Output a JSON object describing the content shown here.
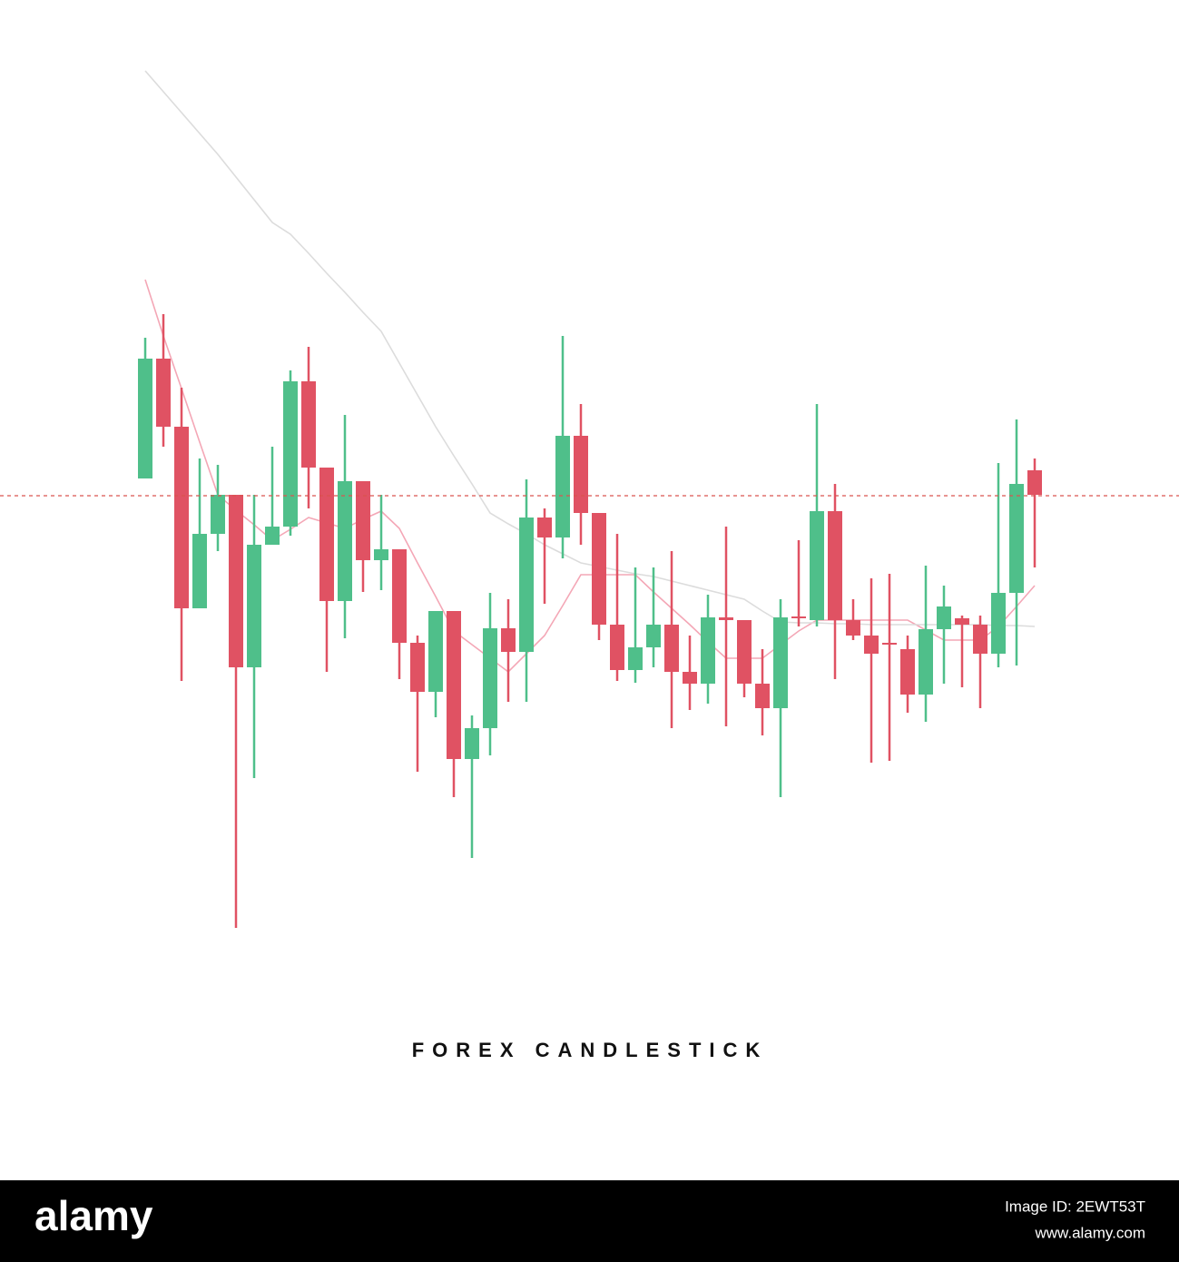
{
  "chart_data": {
    "type": "candlestick",
    "title": "FOREX CANDLESTICK",
    "categories": [
      null,
      null,
      null,
      null,
      null,
      null,
      null,
      null,
      null,
      null,
      null,
      null,
      null,
      null,
      null,
      null,
      null,
      null,
      null,
      null,
      null,
      null,
      null,
      null,
      null,
      null,
      null,
      null,
      null,
      null,
      null,
      null,
      null,
      null,
      null,
      null,
      null,
      null,
      null,
      null,
      null,
      null,
      null,
      null,
      null,
      null,
      null,
      null,
      null,
      null
    ],
    "open": [
      573,
      705,
      630,
      430,
      512,
      555,
      365,
      500,
      520,
      680,
      585,
      438,
      570,
      483,
      495,
      392,
      338,
      427,
      264,
      298,
      408,
      382,
      530,
      508,
      620,
      535,
      412,
      362,
      387,
      412,
      360,
      347,
      420,
      417,
      347,
      320,
      421,
      417,
      537,
      417,
      400,
      392,
      385,
      335,
      407,
      419,
      412,
      380,
      447,
      582
    ],
    "high": [
      728,
      754,
      673,
      595,
      588,
      555,
      555,
      608,
      692,
      718,
      585,
      643,
      570,
      555,
      495,
      400,
      427,
      427,
      312,
      447,
      440,
      572,
      540,
      730,
      655,
      535,
      512,
      475,
      475,
      493,
      400,
      445,
      520,
      417,
      385,
      440,
      505,
      655,
      567,
      440,
      463,
      468,
      400,
      477,
      455,
      422,
      422,
      590,
      638,
      595
    ],
    "low": [
      573,
      608,
      350,
      430,
      493,
      78,
      243,
      500,
      510,
      540,
      360,
      397,
      448,
      450,
      352,
      250,
      310,
      222,
      155,
      268,
      327,
      327,
      435,
      485,
      500,
      395,
      350,
      348,
      365,
      298,
      318,
      325,
      300,
      332,
      290,
      222,
      410,
      410,
      352,
      395,
      260,
      262,
      315,
      305,
      347,
      343,
      320,
      365,
      367,
      475
    ],
    "close": [
      705,
      630,
      430,
      512,
      555,
      365,
      500,
      520,
      680,
      585,
      438,
      570,
      483,
      495,
      392,
      338,
      427,
      264,
      298,
      408,
      382,
      530,
      508,
      620,
      535,
      412,
      362,
      387,
      412,
      360,
      347,
      420,
      417,
      347,
      320,
      420,
      419,
      537,
      417,
      400,
      380,
      390,
      335,
      407,
      432,
      412,
      380,
      447,
      567,
      555
    ],
    "up_color": "#4fbf8a",
    "down_color": "#e05263",
    "lines": [
      {
        "color": "#f4a7b6",
        "values": [
          792,
          730,
          672,
          613,
          555,
          538,
          522,
          505,
          517,
          530,
          524,
          518,
          528,
          537,
          518,
          480,
          443,
          405,
          390,
          375,
          360,
          380,
          400,
          433,
          467,
          467,
          467,
          467,
          448,
          430,
          412,
          393,
          375,
          375,
          375,
          390,
          405,
          417,
          417,
          417,
          417,
          417,
          417,
          406,
          395,
          395,
          395,
          410,
          432,
          455
        ]
      },
      {
        "color": "#dcdcdc",
        "values": [
          1022,
          999,
          976,
          953,
          930,
          905,
          880,
          855,
          842,
          821,
          799,
          778,
          756,
          735,
          700,
          665,
          630,
          598,
          567,
          535,
          523,
          512,
          500,
          490,
          480,
          476,
          472,
          468,
          465,
          460,
          455,
          450,
          445,
          440,
          427,
          415,
          414,
          414,
          413,
          413,
          412,
          412,
          412,
          412,
          412,
          412,
          412,
          411,
          411,
          410
        ]
      }
    ],
    "price_line": 554,
    "price_line_color": "#d9534f",
    "ylim": [
      0,
      1100
    ]
  },
  "footer": {
    "brand": "alamy",
    "image_id": "Image ID: 2EWT53T",
    "site": "www.alamy.com"
  }
}
